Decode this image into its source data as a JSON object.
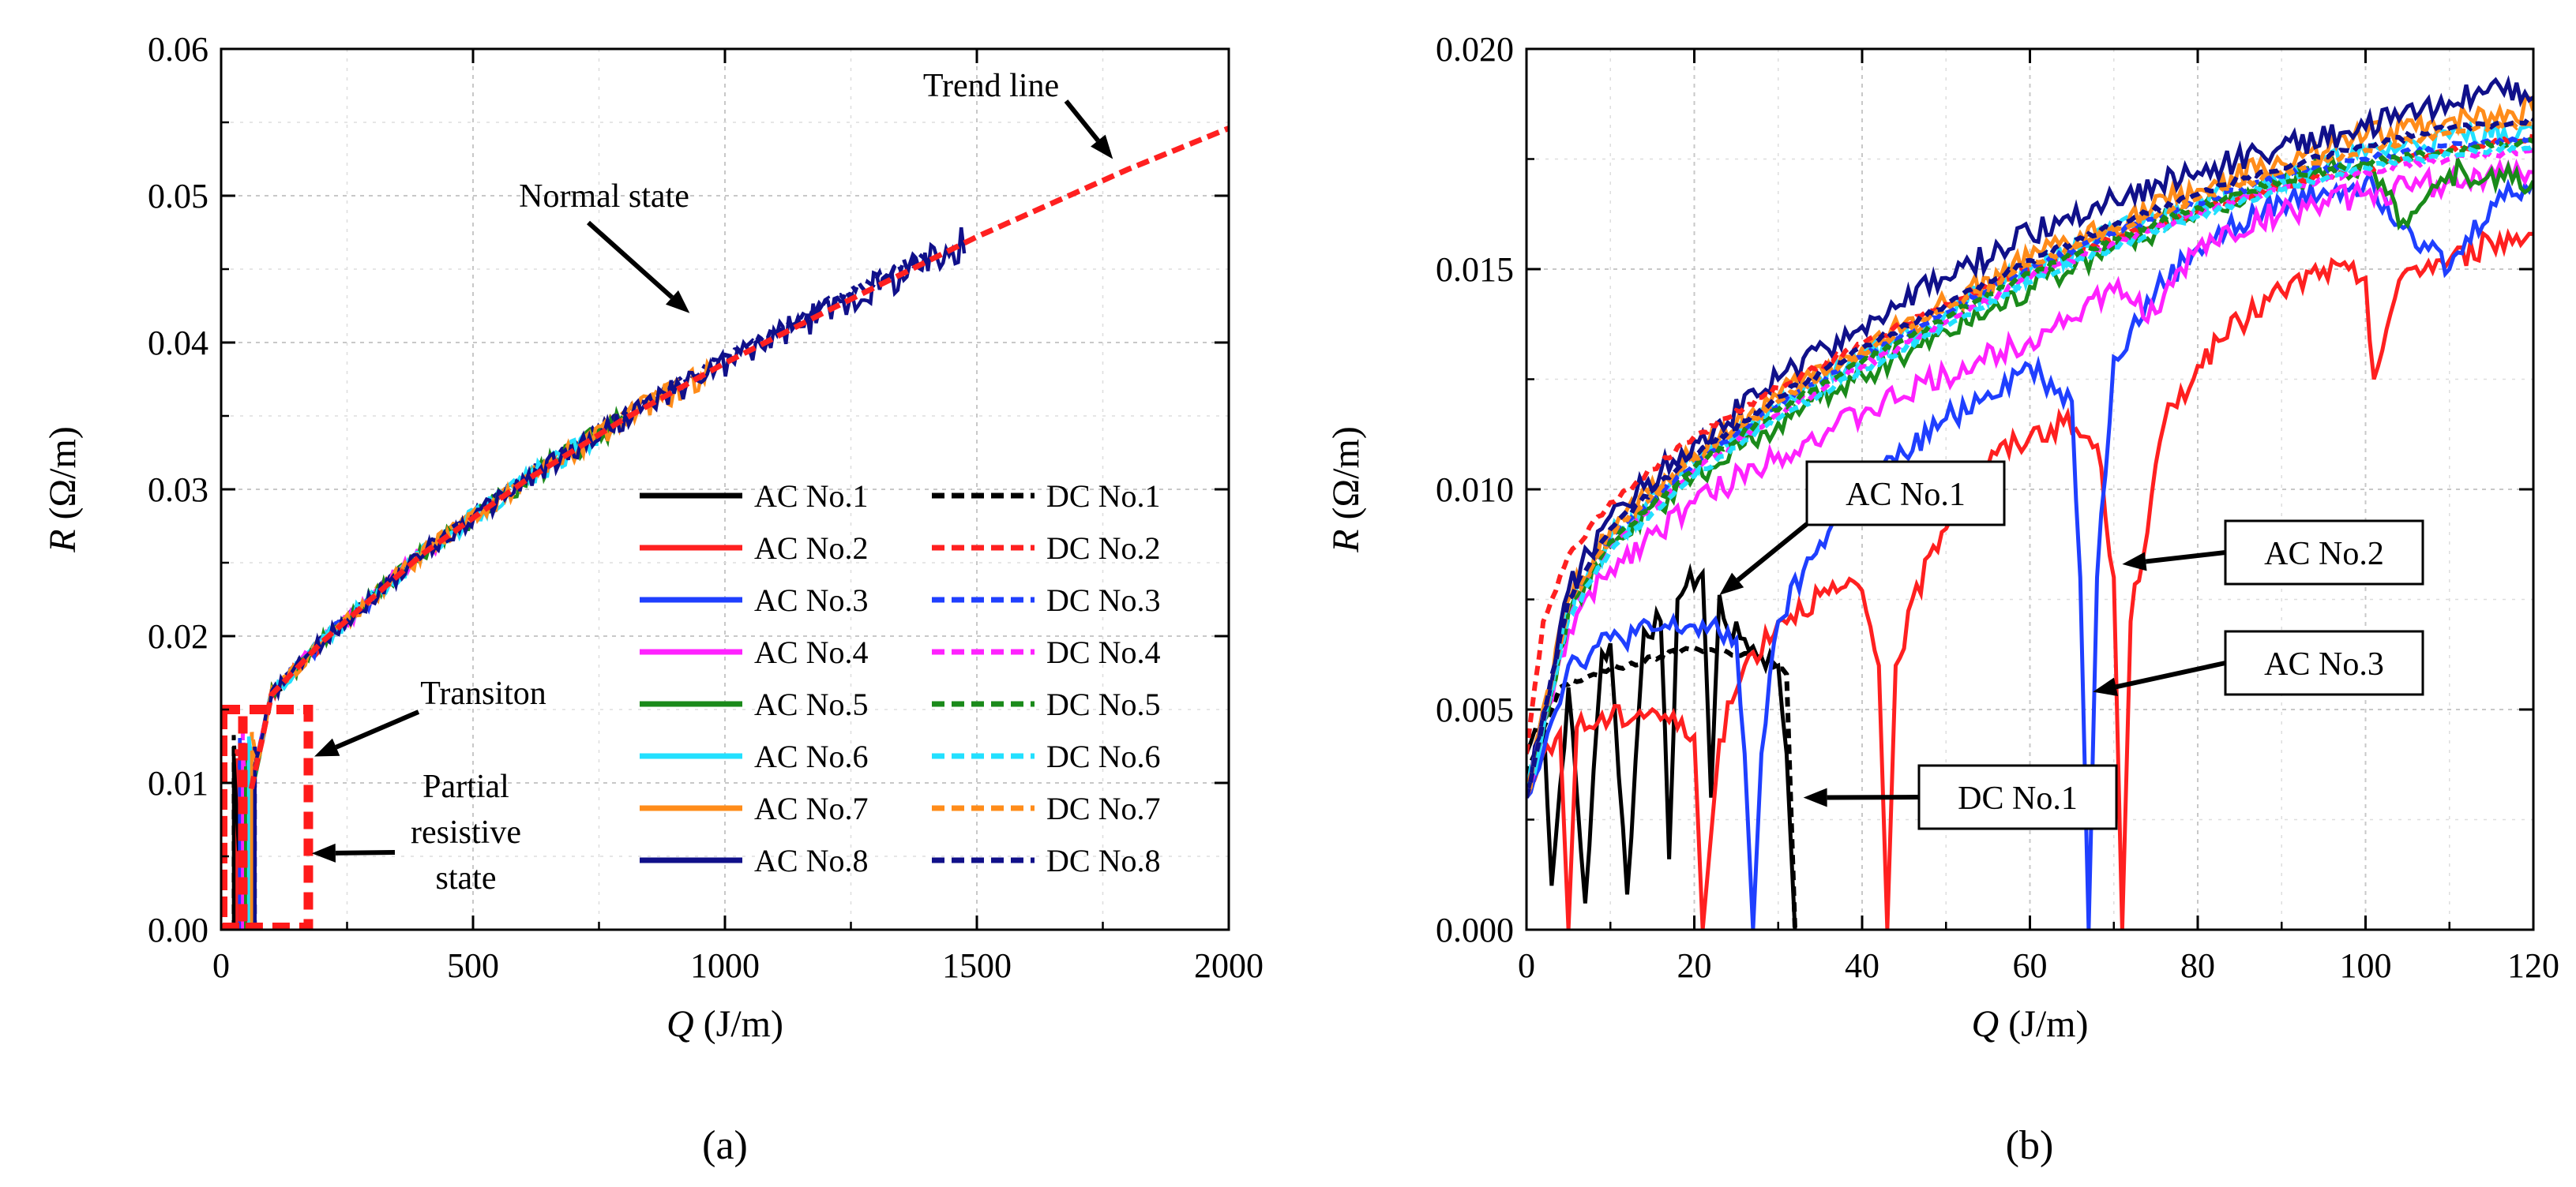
{
  "chart_data": [
    {
      "panel": "(a)",
      "type": "line",
      "xlabel_var": "Q",
      "xlabel_unit": " (J/m)",
      "ylabel_var": "R",
      "ylabel_unit": " (Ω/m)",
      "xlim": [
        0,
        2000
      ],
      "ylim": [
        0,
        0.06
      ],
      "x_ticks": [
        0,
        500,
        1000,
        1500,
        2000
      ],
      "x_tick_labels": [
        "0",
        "500",
        "1000",
        "1500",
        "2000"
      ],
      "y_ticks": [
        0,
        0.01,
        0.02,
        0.03,
        0.04,
        0.05,
        0.06
      ],
      "y_tick_labels": [
        "0.00",
        "0.01",
        "0.02",
        "0.03",
        "0.04",
        "0.05",
        "0.06"
      ],
      "grid": true,
      "legend_position": "lower-right",
      "legend": [
        {
          "name": "AC No.1",
          "color": "#000000",
          "dash": "solid"
        },
        {
          "name": "AC No.2",
          "color": "#ff2020",
          "dash": "solid"
        },
        {
          "name": "AC No.3",
          "color": "#1f3fff",
          "dash": "solid"
        },
        {
          "name": "AC No.4",
          "color": "#ff22ff",
          "dash": "solid"
        },
        {
          "name": "AC No.5",
          "color": "#1a8a1a",
          "dash": "solid"
        },
        {
          "name": "AC No.6",
          "color": "#22e0ff",
          "dash": "solid"
        },
        {
          "name": "AC No.7",
          "color": "#ff8c1a",
          "dash": "solid"
        },
        {
          "name": "AC No.8",
          "color": "#10108a",
          "dash": "solid"
        },
        {
          "name": "DC No.1",
          "color": "#000000",
          "dash": "dashed"
        },
        {
          "name": "DC No.2",
          "color": "#ff2020",
          "dash": "dashed"
        },
        {
          "name": "DC No.3",
          "color": "#1f3fff",
          "dash": "dashed"
        },
        {
          "name": "DC No.4",
          "color": "#ff22ff",
          "dash": "dashed"
        },
        {
          "name": "DC No.5",
          "color": "#1a8a1a",
          "dash": "dashed"
        },
        {
          "name": "DC No.6",
          "color": "#22e0ff",
          "dash": "dashed"
        },
        {
          "name": "DC No.7",
          "color": "#ff8c1a",
          "dash": "dashed"
        },
        {
          "name": "DC No.8",
          "color": "#10108a",
          "dash": "dashed"
        }
      ],
      "trend_line": {
        "x": [
          0,
          100,
          200,
          400,
          600,
          800,
          1000,
          1200,
          1500,
          1800,
          2000
        ],
        "y": [
          0.0,
          0.016,
          0.0196,
          0.0256,
          0.0305,
          0.0348,
          0.0386,
          0.0421,
          0.0472,
          0.0518,
          0.0546
        ],
        "color": "#ff2020"
      },
      "series_end_x": {
        "AC No.1": 120,
        "AC No.2": 200,
        "AC No.3": 300,
        "AC No.4": 450,
        "AC No.5": 800,
        "AC No.6": 750,
        "AC No.7": 980,
        "AC No.8": 1480,
        "DC No.1": 100,
        "DC No.2": 150,
        "DC No.3": 250,
        "DC No.4": 400,
        "DC No.5": 650,
        "DC No.6": 700,
        "DC No.7": 900,
        "DC No.8": 1400
      },
      "regions": [
        {
          "name": "Transition",
          "x": [
            0,
            40
          ],
          "y": [
            0,
            0.015
          ]
        },
        {
          "name": "Partial resistive state",
          "x": [
            0,
            170
          ],
          "y": [
            0,
            0.015
          ]
        }
      ],
      "annotations": [
        {
          "text": "Trend line",
          "target_x": 1770,
          "target_y": 0.0525
        },
        {
          "text": "Normal state",
          "target_x": 930,
          "target_y": 0.042
        },
        {
          "text": "Transiton",
          "target_x": 185,
          "target_y": 0.0118
        },
        {
          "text": "Partial\nresistive\nstate",
          "target_x": 180,
          "target_y": 0.0052
        }
      ]
    },
    {
      "panel": "(b)",
      "type": "line",
      "xlabel_var": "Q",
      "xlabel_unit": " (J/m)",
      "ylabel_var": "R",
      "ylabel_unit": " (Ω/m)",
      "xlim": [
        0,
        120
      ],
      "ylim": [
        0,
        0.02
      ],
      "x_ticks": [
        0,
        20,
        40,
        60,
        80,
        100,
        120
      ],
      "x_tick_labels": [
        "0",
        "20",
        "40",
        "60",
        "80",
        "100",
        "120"
      ],
      "y_ticks": [
        0,
        0.005,
        0.01,
        0.015,
        0.02
      ],
      "y_tick_labels": [
        "0.000",
        "0.005",
        "0.010",
        "0.015",
        "0.020"
      ],
      "grid": true,
      "series": [
        {
          "name": "AC No.1",
          "color": "#000000",
          "dash": "solid",
          "x": [
            0,
            2,
            3,
            5,
            7,
            9,
            10,
            12,
            14,
            16,
            17,
            18,
            19,
            21,
            22,
            23,
            24,
            26,
            28,
            30,
            31,
            32
          ],
          "y": [
            0.004,
            0.005,
            0.001,
            0.0055,
            0.0006,
            0.0063,
            0.0065,
            0.0008,
            0.0068,
            0.007,
            0.0016,
            0.0075,
            0.0078,
            0.0081,
            0.003,
            0.0076,
            0.0068,
            0.0066,
            0.0062,
            0.006,
            0.004,
            0.0
          ]
        },
        {
          "name": "DC No.1",
          "color": "#000000",
          "dash": "dashed",
          "x": [
            0,
            4,
            8,
            12,
            16,
            20,
            24,
            28,
            31,
            32
          ],
          "y": [
            0.0035,
            0.0055,
            0.0058,
            0.006,
            0.0062,
            0.0064,
            0.0063,
            0.0062,
            0.0058,
            0.0
          ]
        },
        {
          "name": "AC No.2",
          "color": "#ff2020",
          "dash": "solid",
          "x": [
            0,
            2,
            4,
            5,
            6,
            10,
            15,
            20,
            21,
            23,
            26,
            30,
            35,
            40,
            42,
            43,
            44,
            48,
            52,
            56,
            60,
            64,
            68,
            70,
            71,
            72,
            76,
            80,
            85,
            90,
            95,
            100,
            101,
            103,
            105,
            110,
            115,
            120
          ],
          "y": [
            0.003,
            0.004,
            0.0045,
            0.0,
            0.0046,
            0.0048,
            0.005,
            0.0044,
            0.0,
            0.0043,
            0.006,
            0.007,
            0.0076,
            0.0077,
            0.006,
            0.0,
            0.006,
            0.0085,
            0.01,
            0.0108,
            0.0112,
            0.0115,
            0.011,
            0.008,
            0.0,
            0.007,
            0.0115,
            0.0128,
            0.0138,
            0.0145,
            0.015,
            0.0148,
            0.0125,
            0.014,
            0.015,
            0.0152,
            0.0156,
            0.0158
          ]
        },
        {
          "name": "AC No.3",
          "color": "#1f3fff",
          "dash": "solid",
          "x": [
            0,
            5,
            10,
            15,
            20,
            25,
            26,
            27,
            28,
            30,
            35,
            40,
            45,
            50,
            55,
            60,
            65,
            66,
            67,
            68,
            70,
            75,
            80,
            85,
            90,
            95,
            100,
            105,
            110,
            115,
            120
          ],
          "y": [
            0.003,
            0.006,
            0.0066,
            0.0068,
            0.0069,
            0.0066,
            0.004,
            0.0,
            0.004,
            0.007,
            0.0088,
            0.01,
            0.0108,
            0.0116,
            0.0122,
            0.0128,
            0.012,
            0.008,
            0.0,
            0.008,
            0.013,
            0.0145,
            0.0155,
            0.016,
            0.0165,
            0.0168,
            0.017,
            0.016,
            0.015,
            0.0165,
            0.017
          ]
        },
        {
          "name": "AC No.4",
          "color": "#ff22ff",
          "dash": "solid",
          "x": [
            0,
            5,
            10,
            15,
            20,
            30,
            40,
            50,
            60,
            70,
            75,
            80,
            90,
            100,
            110,
            120
          ],
          "y": [
            0.003,
            0.0068,
            0.0082,
            0.009,
            0.0097,
            0.0108,
            0.0117,
            0.0126,
            0.0134,
            0.0145,
            0.014,
            0.0155,
            0.0163,
            0.0167,
            0.017,
            0.0172
          ]
        },
        {
          "name": "AC No.5",
          "color": "#1a8a1a",
          "dash": "solid",
          "x": [
            0,
            5,
            10,
            20,
            30,
            40,
            50,
            60,
            70,
            80,
            90,
            100,
            105,
            110,
            120
          ],
          "y": [
            0.003,
            0.0072,
            0.0087,
            0.0103,
            0.0115,
            0.0126,
            0.0136,
            0.0146,
            0.0155,
            0.0163,
            0.017,
            0.0174,
            0.016,
            0.0172,
            0.017
          ]
        },
        {
          "name": "AC No.6",
          "color": "#22e0ff",
          "dash": "solid",
          "x": [
            0,
            5,
            10,
            20,
            30,
            40,
            50,
            60,
            70,
            80,
            90,
            100,
            110,
            120
          ],
          "y": [
            0.003,
            0.0073,
            0.0089,
            0.0106,
            0.0119,
            0.013,
            0.014,
            0.015,
            0.0158,
            0.0165,
            0.0171,
            0.0176,
            0.018,
            0.0182
          ]
        },
        {
          "name": "AC No.7",
          "color": "#ff8c1a",
          "dash": "solid",
          "x": [
            0,
            5,
            10,
            20,
            30,
            40,
            50,
            60,
            70,
            80,
            90,
            100,
            110,
            120
          ],
          "y": [
            0.003,
            0.0075,
            0.0091,
            0.0108,
            0.0121,
            0.0132,
            0.0142,
            0.0152,
            0.016,
            0.0168,
            0.0174,
            0.018,
            0.0184,
            0.0186
          ]
        },
        {
          "name": "AC No.8",
          "color": "#10108a",
          "dash": "solid",
          "x": [
            0,
            5,
            10,
            20,
            30,
            40,
            50,
            60,
            70,
            80,
            90,
            100,
            110,
            115,
            120
          ],
          "y": [
            0.003,
            0.0077,
            0.0094,
            0.0111,
            0.0125,
            0.0137,
            0.0148,
            0.0158,
            0.0166,
            0.0172,
            0.0178,
            0.0182,
            0.0188,
            0.0192,
            0.0189
          ]
        },
        {
          "name": "DC No.2",
          "color": "#ff2020",
          "dash": "dashed",
          "x": [
            0,
            2,
            5,
            10,
            20,
            30,
            40,
            50,
            60,
            70,
            80,
            90,
            100,
            110,
            120
          ],
          "y": [
            0.004,
            0.007,
            0.0085,
            0.0097,
            0.0112,
            0.0123,
            0.0133,
            0.0142,
            0.015,
            0.0157,
            0.0163,
            0.0169,
            0.0173,
            0.0177,
            0.018
          ]
        },
        {
          "name": "DC No.3",
          "color": "#1f3fff",
          "dash": "dashed",
          "x": [
            0,
            5,
            10,
            20,
            30,
            40,
            50,
            60,
            70,
            80,
            90,
            100,
            110,
            120
          ],
          "y": [
            0.003,
            0.0074,
            0.0089,
            0.0106,
            0.0119,
            0.013,
            0.014,
            0.015,
            0.0158,
            0.0165,
            0.0171,
            0.0175,
            0.0178,
            0.018
          ]
        },
        {
          "name": "DC No.4",
          "color": "#ff22ff",
          "dash": "dashed",
          "x": [
            0,
            5,
            10,
            20,
            30,
            40,
            50,
            60,
            70,
            80,
            90,
            100,
            110,
            120
          ],
          "y": [
            0.003,
            0.0072,
            0.0087,
            0.0104,
            0.0117,
            0.0128,
            0.0138,
            0.0148,
            0.0156,
            0.0163,
            0.0168,
            0.0172,
            0.0175,
            0.0177
          ]
        },
        {
          "name": "DC No.5",
          "color": "#1a8a1a",
          "dash": "dashed",
          "x": [
            0,
            5,
            10,
            20,
            30,
            40,
            50,
            60,
            70,
            80,
            90,
            100,
            110,
            120
          ],
          "y": [
            0.003,
            0.0073,
            0.0088,
            0.0105,
            0.0118,
            0.0129,
            0.0139,
            0.0149,
            0.0157,
            0.0164,
            0.017,
            0.0174,
            0.0177,
            0.0179
          ]
        },
        {
          "name": "DC No.6",
          "color": "#22e0ff",
          "dash": "dashed",
          "x": [
            0,
            5,
            10,
            20,
            30,
            40,
            50,
            60,
            70,
            80,
            90,
            100,
            110,
            120
          ],
          "y": [
            0.003,
            0.0071,
            0.0086,
            0.0103,
            0.0116,
            0.0127,
            0.0137,
            0.0147,
            0.0155,
            0.0162,
            0.0168,
            0.0173,
            0.0176,
            0.0178
          ]
        },
        {
          "name": "DC No.7",
          "color": "#ff8c1a",
          "dash": "dashed",
          "x": [
            0,
            5,
            10,
            20,
            30,
            40,
            50,
            60,
            70,
            80,
            90,
            100,
            110,
            120
          ],
          "y": [
            0.003,
            0.0074,
            0.009,
            0.0107,
            0.012,
            0.0131,
            0.0141,
            0.0151,
            0.0159,
            0.0166,
            0.0172,
            0.0177,
            0.0181,
            0.0183
          ]
        },
        {
          "name": "DC No.8",
          "color": "#10108a",
          "dash": "dashed",
          "x": [
            0,
            5,
            10,
            20,
            30,
            40,
            50,
            60,
            70,
            80,
            90,
            100,
            110,
            120
          ],
          "y": [
            0.003,
            0.0075,
            0.0091,
            0.0108,
            0.0121,
            0.0132,
            0.0142,
            0.0152,
            0.016,
            0.0167,
            0.0173,
            0.0178,
            0.0182,
            0.0184
          ]
        }
      ],
      "callouts": [
        {
          "text": "AC No.1",
          "target_x": 23,
          "target_y": 0.0076
        },
        {
          "text": "AC No.2",
          "target_x": 71,
          "target_y": 0.0083
        },
        {
          "text": "AC No.3",
          "target_x": 67.5,
          "target_y": 0.0054
        },
        {
          "text": "DC No.1",
          "target_x": 33,
          "target_y": 0.003
        }
      ]
    }
  ]
}
